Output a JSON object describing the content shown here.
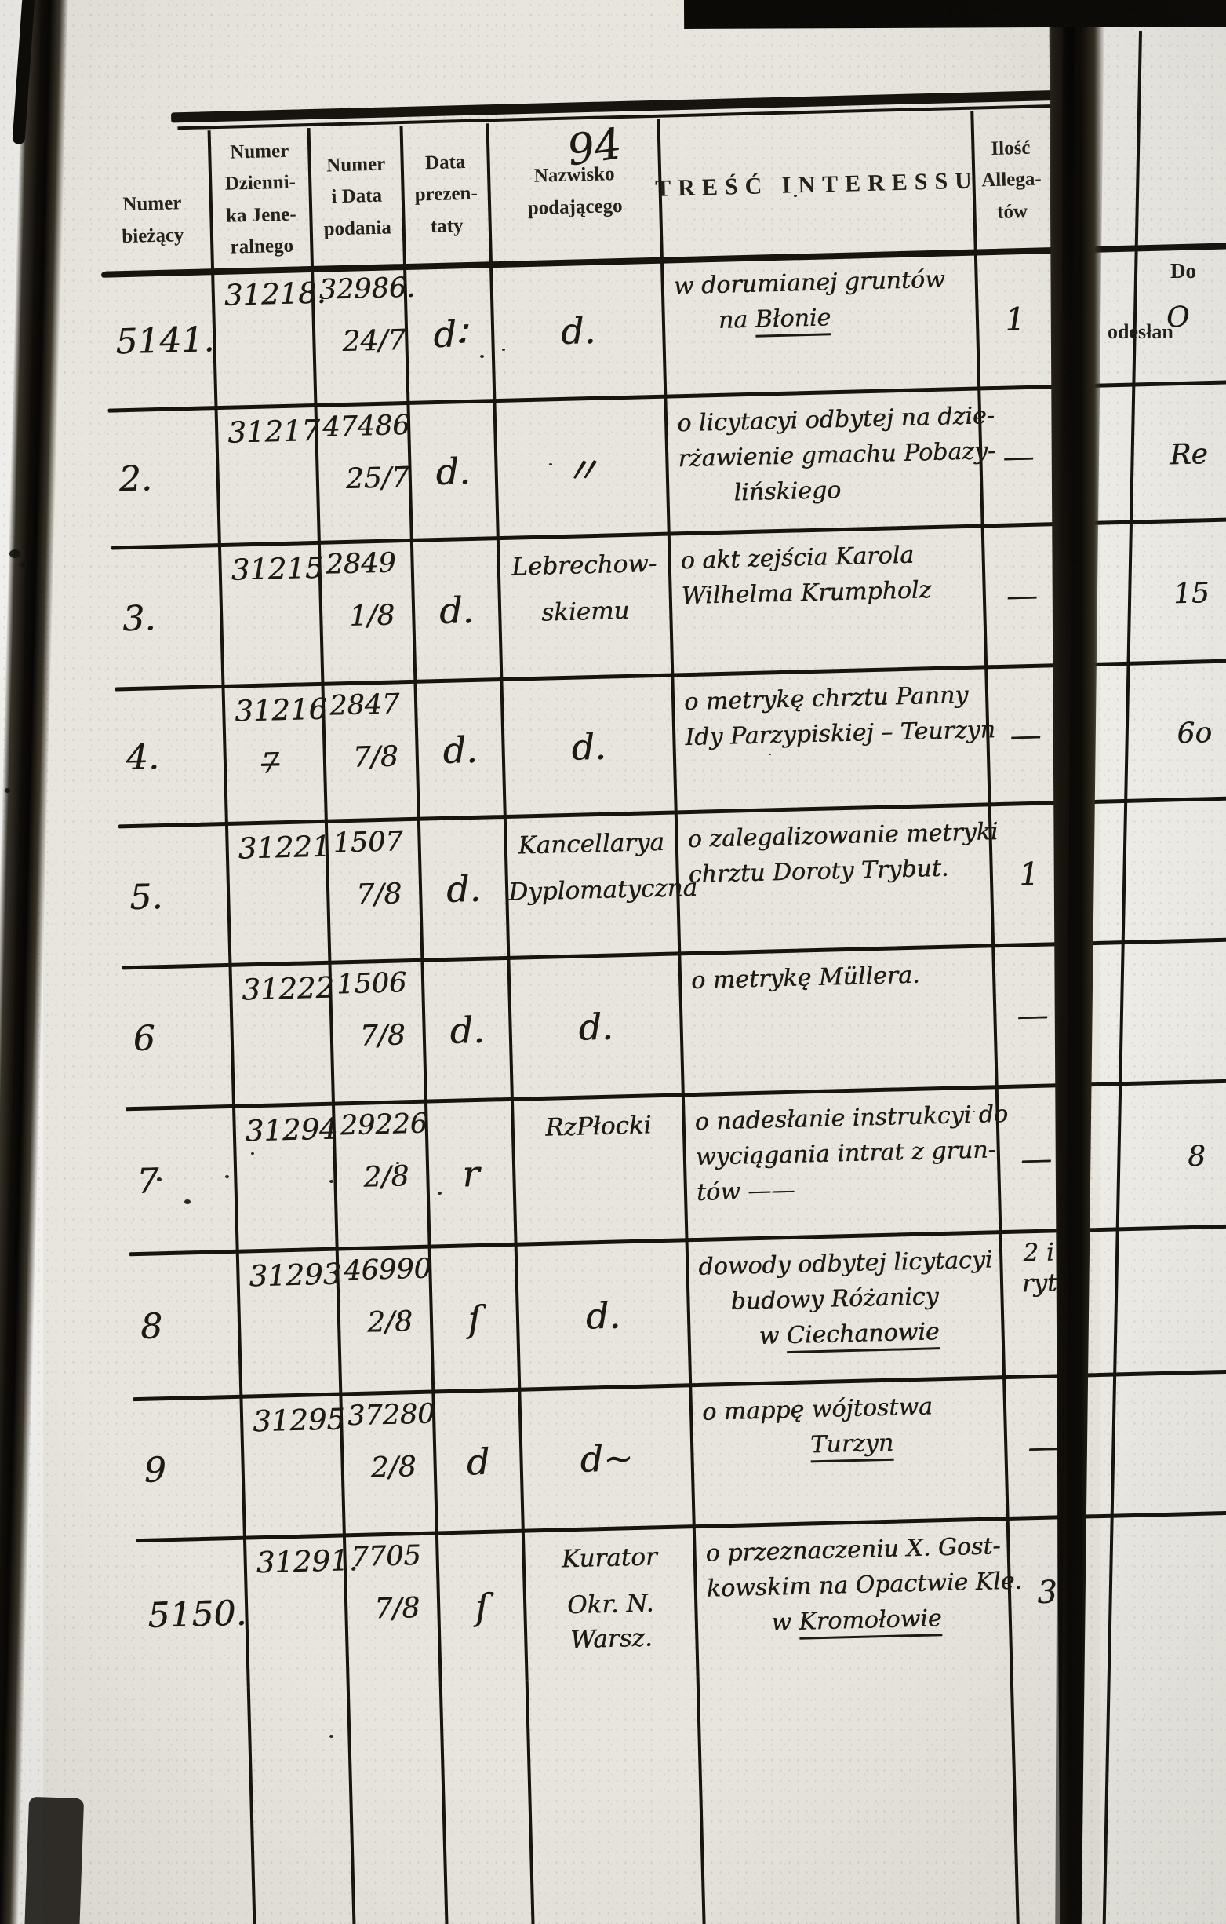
{
  "document": {
    "page_number_annotation": "94",
    "header": {
      "columns": [
        {
          "id": "numer-biezacy",
          "lines": [
            "Numer",
            "bieżący"
          ]
        },
        {
          "id": "numer-dziennika-jeneralnego",
          "lines": [
            "Numer",
            "Dzienni-",
            "ka Jene-",
            "ralnego"
          ]
        },
        {
          "id": "numer-i-data-podania",
          "lines": [
            "Numer",
            "i Data",
            "podania"
          ]
        },
        {
          "id": "data-prezentaty",
          "lines": [
            "Data",
            "prezen-",
            "taty"
          ]
        },
        {
          "id": "nazwisko-podajacego",
          "lines": [
            "Nazwisko",
            "podającego"
          ]
        },
        {
          "id": "tresc-interessu",
          "lines": [
            "TREŚĆ INTERESSU"
          ]
        },
        {
          "id": "ilosc-allegatow",
          "lines": [
            "Ilość",
            "Allega-",
            "tów"
          ]
        }
      ],
      "right_page_column_lines": [
        "Do",
        "odesłan"
      ]
    },
    "rows": [
      {
        "numer": "5141.",
        "dziennik": "31218.",
        "podanie_numer": "32986.",
        "podanie_data": "24/7",
        "prezentata": "d∶",
        "nazwisko": [
          "d."
        ],
        "tresc": [
          {
            "text": "w dorumianej gruntów"
          },
          {
            "text": "na ",
            "underline": "Błonie",
            "indent": 56
          }
        ],
        "ilosc": [
          "1"
        ],
        "right_fragment": "O"
      },
      {
        "numer": "2.",
        "dziennik": "31217",
        "podanie_numer": "47486",
        "podanie_data": "25/7",
        "prezentata": "d.",
        "nazwisko": [
          "〃"
        ],
        "tresc": [
          {
            "text": "o licytacyi odbytej na dzie-"
          },
          {
            "text": "rżawienie gmachu Pobazy-"
          },
          {
            "text": "lińskiego",
            "indent": 70
          }
        ],
        "ilosc": [
          "—"
        ],
        "right_fragment": "Re"
      },
      {
        "numer": "3.",
        "dziennik": "31215",
        "podanie_numer": "2849",
        "podanie_data": "1/8",
        "prezentata": "d.",
        "nazwisko": [
          "Lebrechow-",
          "skiemu"
        ],
        "tresc": [
          {
            "text": "o akt zejścia Karola"
          },
          {
            "text": "Wilhelma Krumpholz"
          }
        ],
        "ilosc": [
          "—"
        ],
        "right_fragment": "15"
      },
      {
        "numer": "4.",
        "dziennik": "31216",
        "dziennik_mark": "7",
        "podanie_numer": "2847",
        "podanie_data": "7/8",
        "prezentata": "d.",
        "nazwisko": [
          "d."
        ],
        "tresc": [
          {
            "text": "o metrykę chrztu Panny"
          },
          {
            "text": "Idy Parzypiskiej – Teurzyn"
          }
        ],
        "ilosc": [
          "—"
        ],
        "right_fragment": "6o"
      },
      {
        "numer": "5.",
        "dziennik": "31221",
        "podanie_numer": "1507",
        "podanie_data": "7/8",
        "prezentata": "d.",
        "nazwisko": [
          "Kancellarya",
          "Dyplomatyczna"
        ],
        "tresc": [
          {
            "text": "o zalegalizowanie metryki"
          },
          {
            "text": "chrztu Doroty Trybut."
          }
        ],
        "ilosc": [
          "1"
        ]
      },
      {
        "numer": "6",
        "dziennik": "31222",
        "podanie_numer": "1506",
        "podanie_data": "7/8",
        "prezentata": "d.",
        "nazwisko": [
          "d."
        ],
        "tresc": [
          {
            "text": "o metrykę Müllera."
          }
        ],
        "ilosc": [
          "—"
        ]
      },
      {
        "numer": "7",
        "dziennik": "31294",
        "podanie_numer": "29226",
        "podanie_data": "2/8",
        "prezentata": "r",
        "nazwisko": [
          "RzPłocki"
        ],
        "tresc": [
          {
            "text": "o nadesłanie instrukcyi do"
          },
          {
            "text": "wyciągania intrat z grun-"
          },
          {
            "text": "tów ——"
          }
        ],
        "ilosc": [
          "—"
        ],
        "right_fragment": "8"
      },
      {
        "numer": "8",
        "dziennik": "31293",
        "podanie_numer": "46990",
        "podanie_data": "2/8",
        "prezentata": "ſ",
        "nazwisko": [
          "d."
        ],
        "tresc": [
          {
            "text": "dowody odbytej licytacyi"
          },
          {
            "text": "budowy Różanicy",
            "indent": 40
          },
          {
            "text": "w ",
            "underline": "Ciechanowie",
            "center": true
          }
        ],
        "ilosc": [
          "2 i",
          "ryt"
        ]
      },
      {
        "numer": "9",
        "dziennik": "31295",
        "podanie_numer": "37280",
        "podanie_data": "2/8",
        "prezentata": "d",
        "nazwisko": [
          "d~"
        ],
        "tresc": [
          {
            "text": "o mappę wójtostwa"
          },
          {
            "text": "",
            "underline": "Turzyn",
            "center": true
          }
        ],
        "ilosc": [
          "—"
        ]
      },
      {
        "numer": "5150.",
        "dziennik": "31291.",
        "podanie_numer": "7705",
        "podanie_data": "7/8",
        "prezentata": "ſ",
        "nazwisko": [
          "Kurator",
          "Okr. N. Warsz."
        ],
        "tresc": [
          {
            "text": "o przeznaczeniu X. Gost-"
          },
          {
            "text": "kowskim na Opactwie Kle."
          },
          {
            "text": "w ",
            "underline": "Kromołowie",
            "center": true
          }
        ],
        "ilosc": [
          "3"
        ]
      }
    ],
    "colors": {
      "paper": "#e7e5de",
      "paper_right": "#edece6",
      "ink": "#1d1a15",
      "line": "#17140f",
      "binding": "#16130e"
    }
  }
}
